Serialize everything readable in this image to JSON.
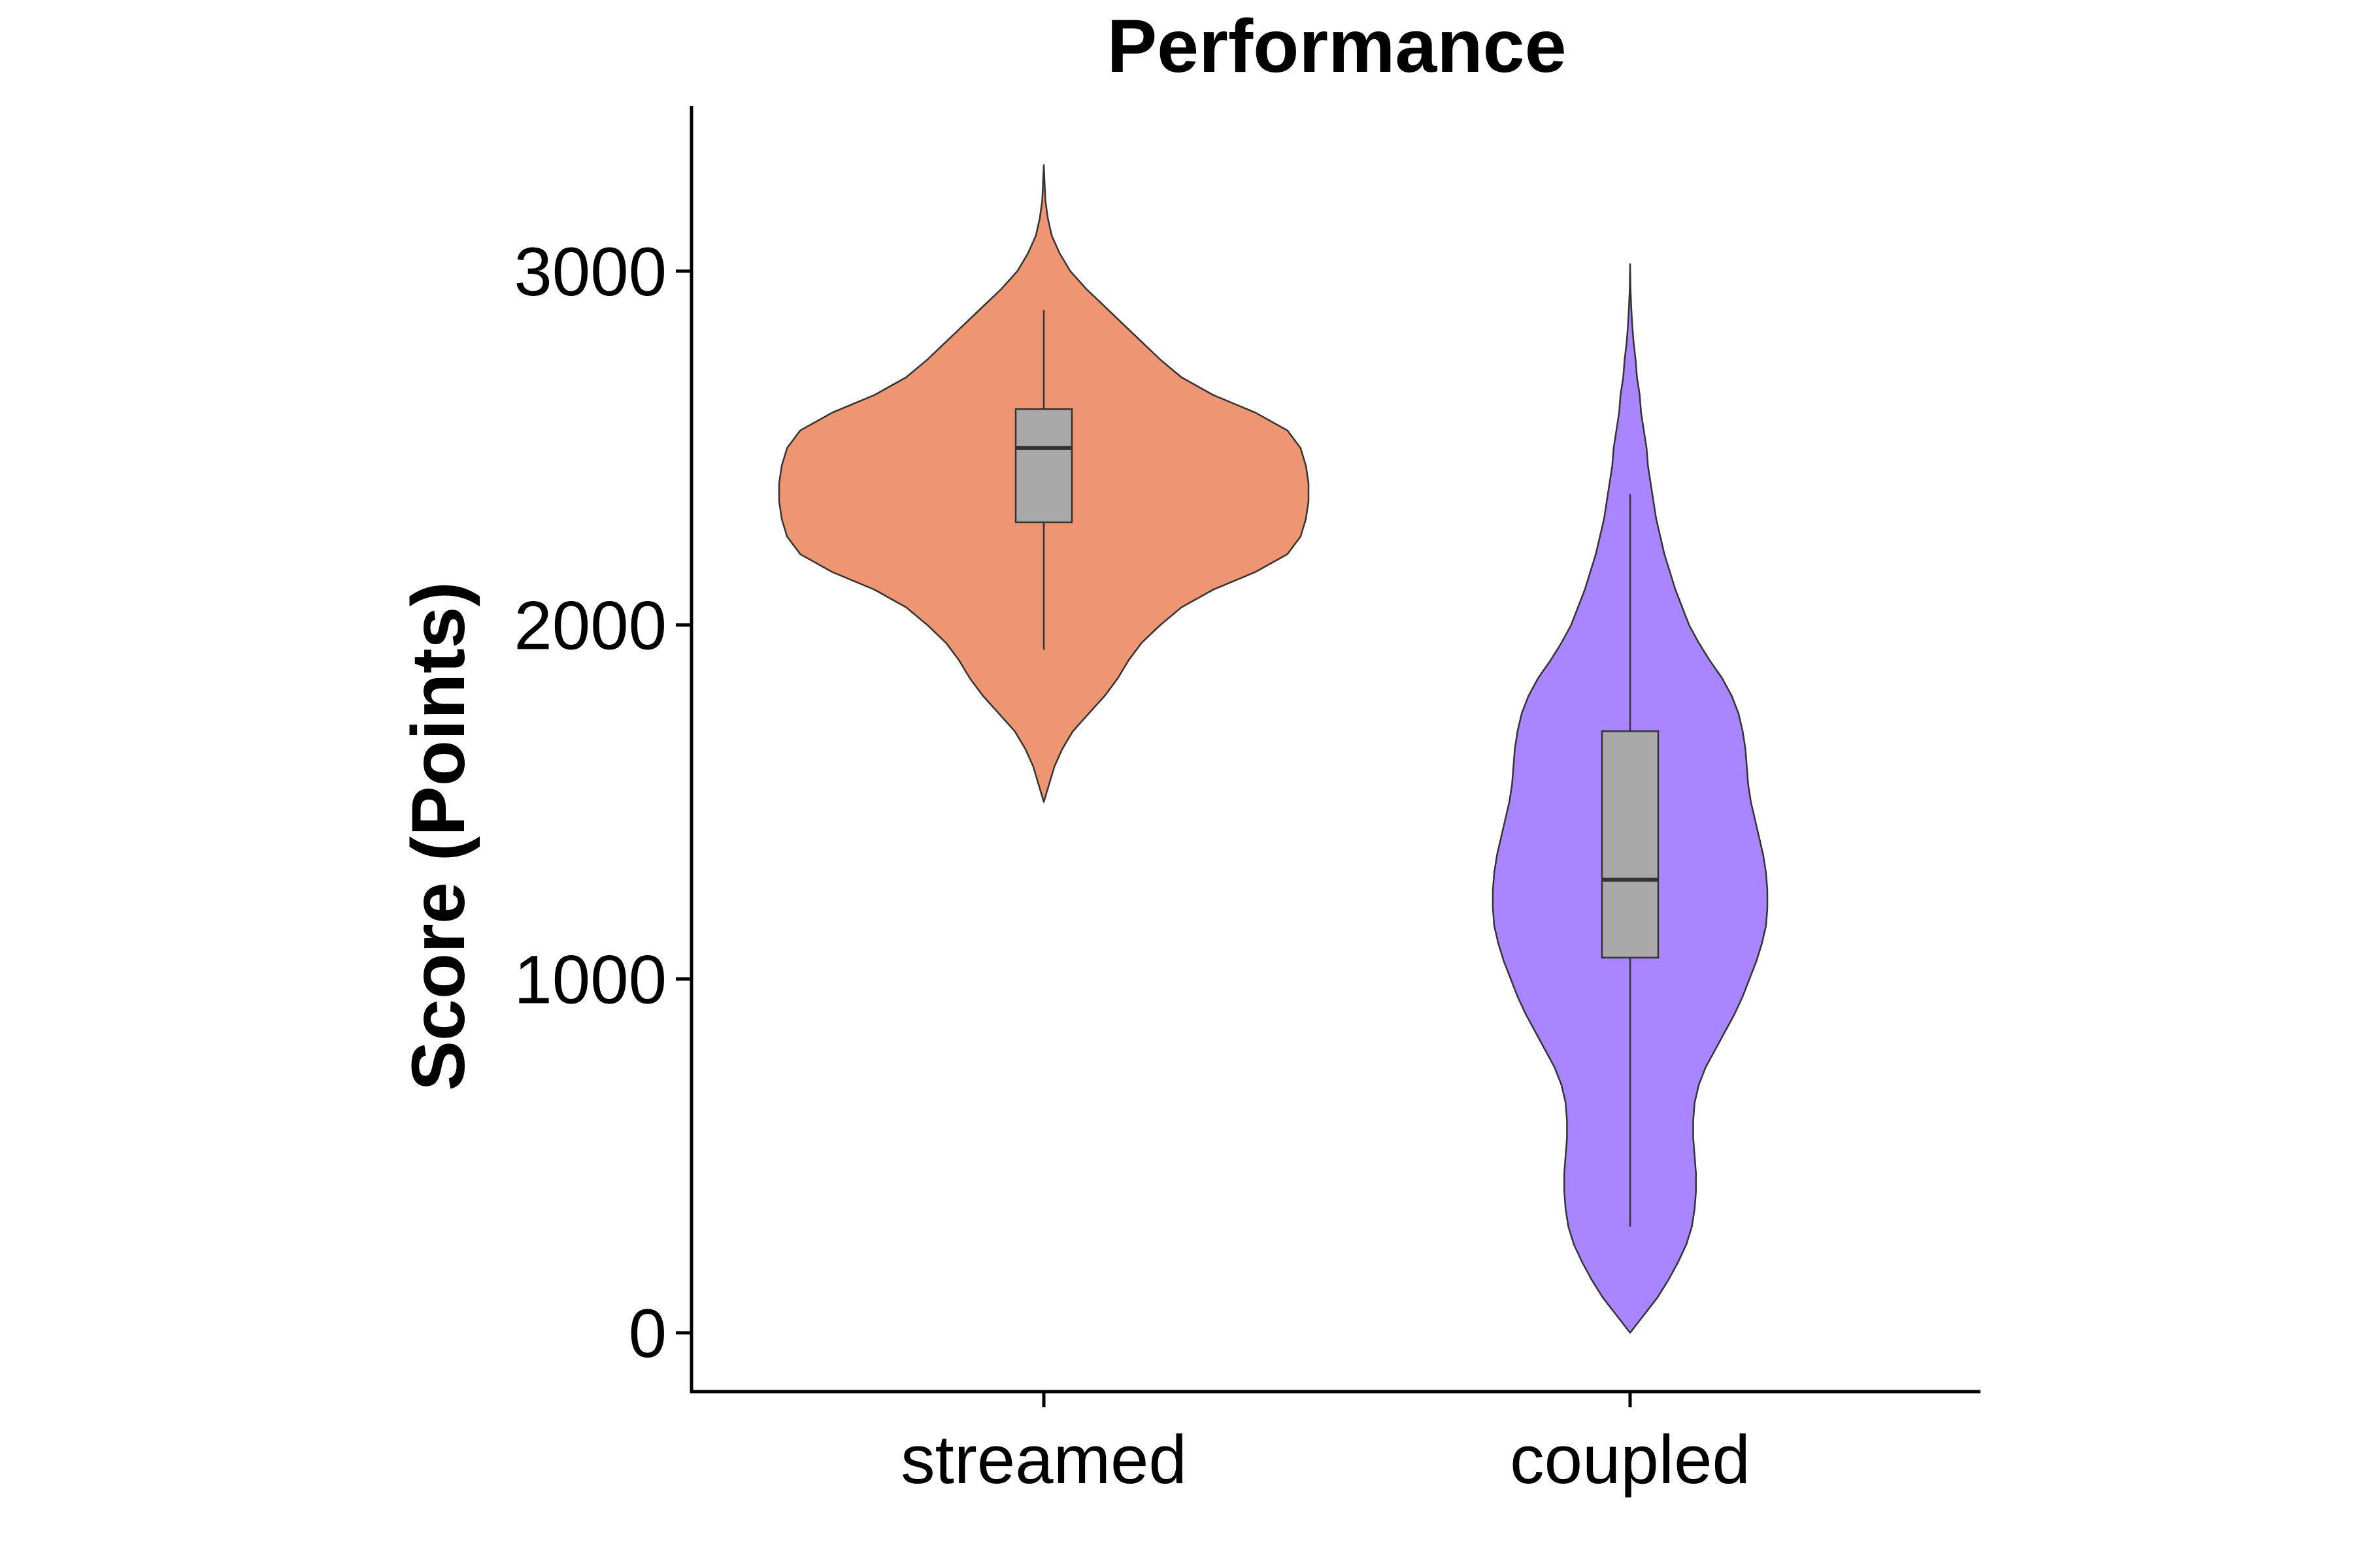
{
  "chart_data": {
    "type": "violin",
    "title": "Performance",
    "xlabel": "",
    "ylabel": "Score (Points)",
    "ylim": [
      -170,
      3450
    ],
    "yticks": [
      0,
      1000,
      2000,
      3000
    ],
    "ytick_labels": [
      "0",
      "1000",
      "2000",
      "3000"
    ],
    "categories": [
      "streamed",
      "coupled"
    ],
    "grid": false,
    "legend": "none",
    "series": [
      {
        "category": "streamed",
        "color": "#EE9672",
        "box": {
          "min": 1930,
          "q1": 2290,
          "median": 2500,
          "q3": 2610,
          "max": 2890
        },
        "density": [
          [
            1500,
            0.0
          ],
          [
            1550,
            0.02
          ],
          [
            1600,
            0.04
          ],
          [
            1650,
            0.07
          ],
          [
            1700,
            0.11
          ],
          [
            1750,
            0.17
          ],
          [
            1800,
            0.23
          ],
          [
            1850,
            0.28
          ],
          [
            1900,
            0.32
          ],
          [
            1950,
            0.37
          ],
          [
            2000,
            0.44
          ],
          [
            2050,
            0.52
          ],
          [
            2100,
            0.64
          ],
          [
            2150,
            0.8
          ],
          [
            2200,
            0.92
          ],
          [
            2250,
            0.97
          ],
          [
            2300,
            0.99
          ],
          [
            2350,
            1.0
          ],
          [
            2400,
            1.0
          ],
          [
            2450,
            0.99
          ],
          [
            2500,
            0.97
          ],
          [
            2550,
            0.92
          ],
          [
            2600,
            0.8
          ],
          [
            2650,
            0.64
          ],
          [
            2700,
            0.52
          ],
          [
            2750,
            0.44
          ],
          [
            2800,
            0.37
          ],
          [
            2850,
            0.3
          ],
          [
            2900,
            0.23
          ],
          [
            2950,
            0.16
          ],
          [
            3000,
            0.1
          ],
          [
            3050,
            0.06
          ],
          [
            3100,
            0.03
          ],
          [
            3150,
            0.015
          ],
          [
            3200,
            0.006
          ],
          [
            3300,
            0.0
          ]
        ]
      },
      {
        "category": "coupled",
        "color": "#A985FF",
        "box": {
          "min": 300,
          "q1": 1060,
          "median": 1280,
          "q3": 1700,
          "max": 2370
        },
        "density": [
          [
            0,
            0.0
          ],
          [
            50,
            0.1
          ],
          [
            100,
            0.2
          ],
          [
            150,
            0.28
          ],
          [
            200,
            0.35
          ],
          [
            250,
            0.41
          ],
          [
            300,
            0.45
          ],
          [
            350,
            0.47
          ],
          [
            400,
            0.48
          ],
          [
            450,
            0.48
          ],
          [
            500,
            0.47
          ],
          [
            550,
            0.46
          ],
          [
            600,
            0.46
          ],
          [
            650,
            0.47
          ],
          [
            700,
            0.5
          ],
          [
            750,
            0.55
          ],
          [
            800,
            0.62
          ],
          [
            850,
            0.69
          ],
          [
            900,
            0.76
          ],
          [
            950,
            0.82
          ],
          [
            1000,
            0.87
          ],
          [
            1050,
            0.92
          ],
          [
            1100,
            0.96
          ],
          [
            1150,
            0.99
          ],
          [
            1200,
            1.0
          ],
          [
            1250,
            1.0
          ],
          [
            1300,
            0.99
          ],
          [
            1350,
            0.97
          ],
          [
            1400,
            0.94
          ],
          [
            1450,
            0.91
          ],
          [
            1500,
            0.88
          ],
          [
            1550,
            0.86
          ],
          [
            1600,
            0.85
          ],
          [
            1650,
            0.84
          ],
          [
            1700,
            0.82
          ],
          [
            1750,
            0.79
          ],
          [
            1800,
            0.74
          ],
          [
            1850,
            0.67
          ],
          [
            1900,
            0.58
          ],
          [
            1950,
            0.5
          ],
          [
            2000,
            0.43
          ],
          [
            2050,
            0.38
          ],
          [
            2100,
            0.33
          ],
          [
            2150,
            0.29
          ],
          [
            2200,
            0.25
          ],
          [
            2250,
            0.22
          ],
          [
            2300,
            0.19
          ],
          [
            2350,
            0.17
          ],
          [
            2400,
            0.15
          ],
          [
            2450,
            0.13
          ],
          [
            2500,
            0.12
          ],
          [
            2550,
            0.1
          ],
          [
            2600,
            0.08
          ],
          [
            2650,
            0.07
          ],
          [
            2700,
            0.05
          ],
          [
            2750,
            0.04
          ],
          [
            2800,
            0.025
          ],
          [
            2850,
            0.015
          ],
          [
            2900,
            0.008
          ],
          [
            2950,
            0.003
          ],
          [
            3020,
            0.0
          ]
        ]
      }
    ],
    "box_fill": "#A9A9A9"
  }
}
